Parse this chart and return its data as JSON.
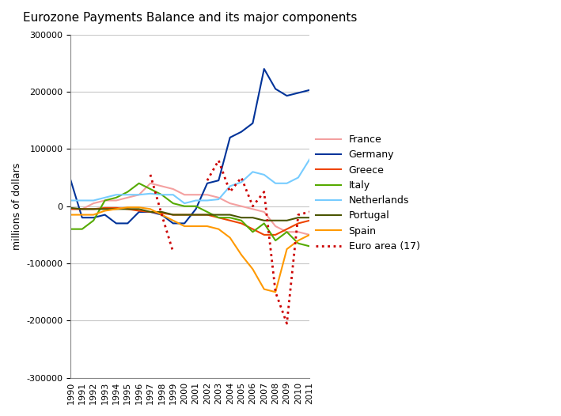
{
  "title": "Eurozone Payments Balance and its major components",
  "ylabel": "millions of dollars",
  "years": [
    1990,
    1991,
    1992,
    1993,
    1994,
    1995,
    1996,
    1997,
    1998,
    1999,
    2000,
    2001,
    2002,
    2003,
    2004,
    2005,
    2006,
    2007,
    2008,
    2009,
    2010,
    2011
  ],
  "series": {
    "France": {
      "color": "#F4A0A0",
      "linestyle": "-",
      "linewidth": 1.5,
      "data": [
        -5000,
        -5000,
        5000,
        10000,
        10000,
        15000,
        20000,
        40000,
        35000,
        30000,
        20000,
        20000,
        20000,
        15000,
        5000,
        0,
        -5000,
        -10000,
        -35000,
        -45000,
        -45000,
        -50000
      ]
    },
    "Germany": {
      "color": "#003399",
      "linestyle": "-",
      "linewidth": 1.5,
      "data": [
        45000,
        -20000,
        -20000,
        -15000,
        -30000,
        -30000,
        -10000,
        -10000,
        -15000,
        -30000,
        -30000,
        -5000,
        40000,
        45000,
        120000,
        130000,
        145000,
        240000,
        205000,
        193000,
        198000,
        203000
      ]
    },
    "Greece": {
      "color": "#EE4400",
      "linestyle": "-",
      "linewidth": 1.5,
      "data": [
        -5000,
        -5000,
        -5000,
        -3000,
        -3000,
        -5000,
        -8000,
        -10000,
        -12000,
        -15000,
        -15000,
        -15000,
        -15000,
        -20000,
        -25000,
        -30000,
        -40000,
        -50000,
        -50000,
        -40000,
        -30000,
        -25000
      ]
    },
    "Italy": {
      "color": "#55AA00",
      "linestyle": "-",
      "linewidth": 1.5,
      "data": [
        -40000,
        -40000,
        -25000,
        10000,
        15000,
        25000,
        40000,
        30000,
        20000,
        5000,
        0,
        0,
        -10000,
        -20000,
        -20000,
        -25000,
        -45000,
        -30000,
        -60000,
        -45000,
        -65000,
        -70000
      ]
    },
    "Netherlands": {
      "color": "#77CCFF",
      "linestyle": "-",
      "linewidth": 1.5,
      "data": [
        10000,
        10000,
        10000,
        15000,
        20000,
        20000,
        20000,
        22000,
        20000,
        20000,
        5000,
        10000,
        10000,
        12000,
        35000,
        42000,
        60000,
        55000,
        40000,
        40000,
        50000,
        82000
      ]
    },
    "Portugal": {
      "color": "#4A5500",
      "linestyle": "-",
      "linewidth": 1.5,
      "data": [
        -3000,
        -5000,
        -5000,
        -5000,
        -5000,
        -5000,
        -5000,
        -10000,
        -10000,
        -15000,
        -15000,
        -15000,
        -15000,
        -15000,
        -15000,
        -20000,
        -20000,
        -25000,
        -25000,
        -25000,
        -20000,
        -20000
      ]
    },
    "Spain": {
      "color": "#FF9900",
      "linestyle": "-",
      "linewidth": 1.5,
      "data": [
        -15000,
        -15000,
        -15000,
        -8000,
        -5000,
        -2000,
        -2000,
        -5000,
        -15000,
        -25000,
        -35000,
        -35000,
        -35000,
        -40000,
        -55000,
        -85000,
        -110000,
        -145000,
        -150000,
        -75000,
        -60000,
        -50000
      ]
    },
    "Euro area (17)": {
      "color": "#CC0000",
      "linestyle": ":",
      "linewidth": 2.0,
      "data": [
        null,
        null,
        null,
        null,
        null,
        null,
        null,
        55000,
        -15000,
        -80000,
        null,
        null,
        45000,
        80000,
        25000,
        50000,
        0,
        25000,
        -150000,
        -205000,
        -15000,
        -10000
      ]
    }
  },
  "ylim": [
    -300000,
    300000
  ],
  "yticks": [
    -300000,
    -200000,
    -100000,
    0,
    100000,
    200000,
    300000
  ],
  "legend_order": [
    "France",
    "Germany",
    "Greece",
    "Italy",
    "Netherlands",
    "Portugal",
    "Spain",
    "Euro area (17)"
  ],
  "background_color": "#ffffff",
  "grid_color": "#c8c8c8"
}
